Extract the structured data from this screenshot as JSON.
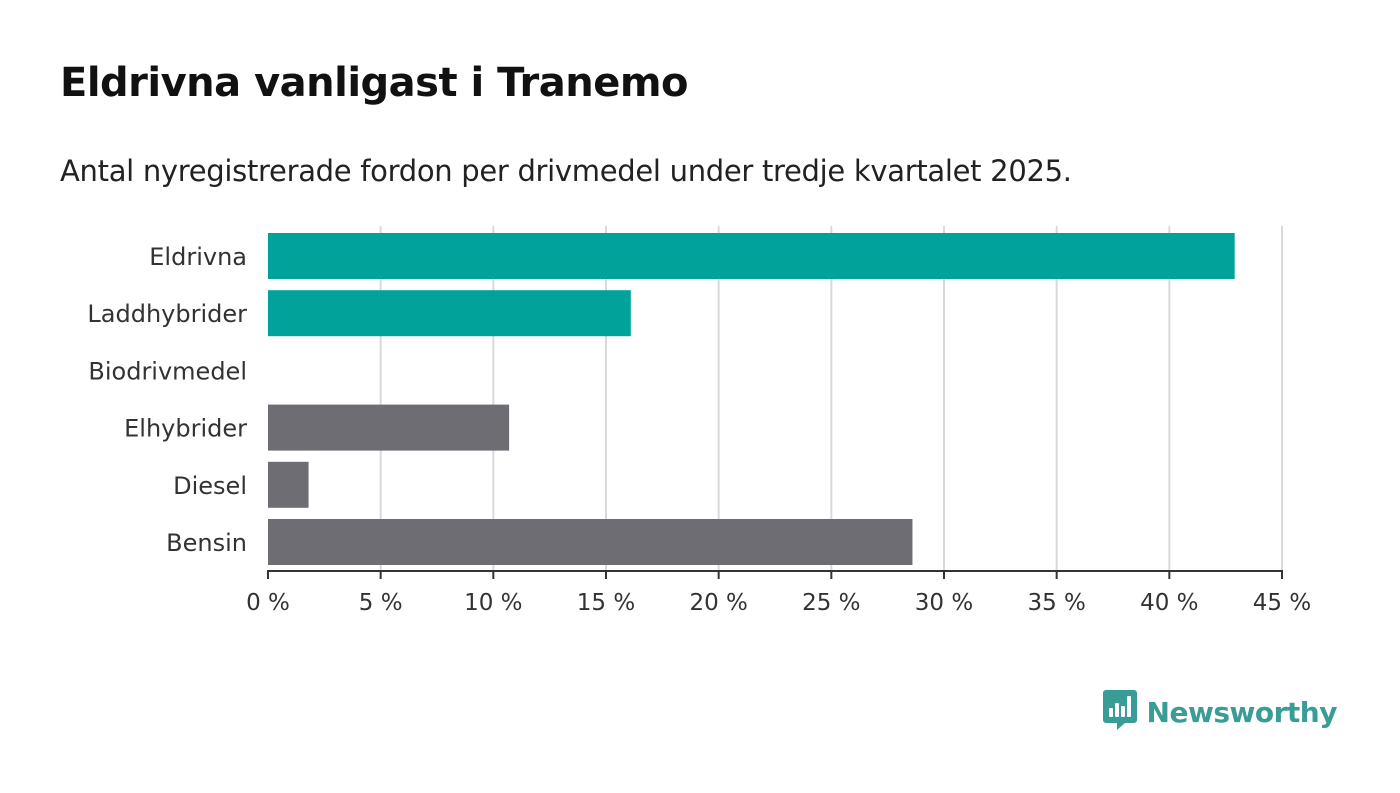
{
  "header": {
    "title": "Eldrivna vanligast i Tranemo",
    "subtitle": "Antal nyregistrerade fordon per drivmedel under tredje kvartalet 2025."
  },
  "brand": {
    "name": "Newsworthy",
    "icon": "newsworthy-logo-icon",
    "color": "#3a9c96"
  },
  "chart_data": {
    "type": "bar",
    "orientation": "horizontal",
    "categories": [
      "Eldrivna",
      "Laddhybrider",
      "Biodrivmedel",
      "Elhybrider",
      "Diesel",
      "Bensin"
    ],
    "values": [
      42.9,
      16.1,
      0,
      10.7,
      1.8,
      28.6
    ],
    "colors": [
      "#00a29a",
      "#00a29a",
      "#00a29a",
      "#6e6d73",
      "#6e6d73",
      "#6e6d73"
    ],
    "xlim": [
      0,
      45
    ],
    "xticks": [
      0,
      5,
      10,
      15,
      20,
      25,
      30,
      35,
      40,
      45
    ],
    "tick_labels": [
      "0 %",
      "5 %",
      "10 %",
      "15 %",
      "20 %",
      "25 %",
      "30 %",
      "35 %",
      "40 %",
      "45 %"
    ],
    "grid": "vertical",
    "title": "",
    "xlabel": "",
    "ylabel": ""
  }
}
